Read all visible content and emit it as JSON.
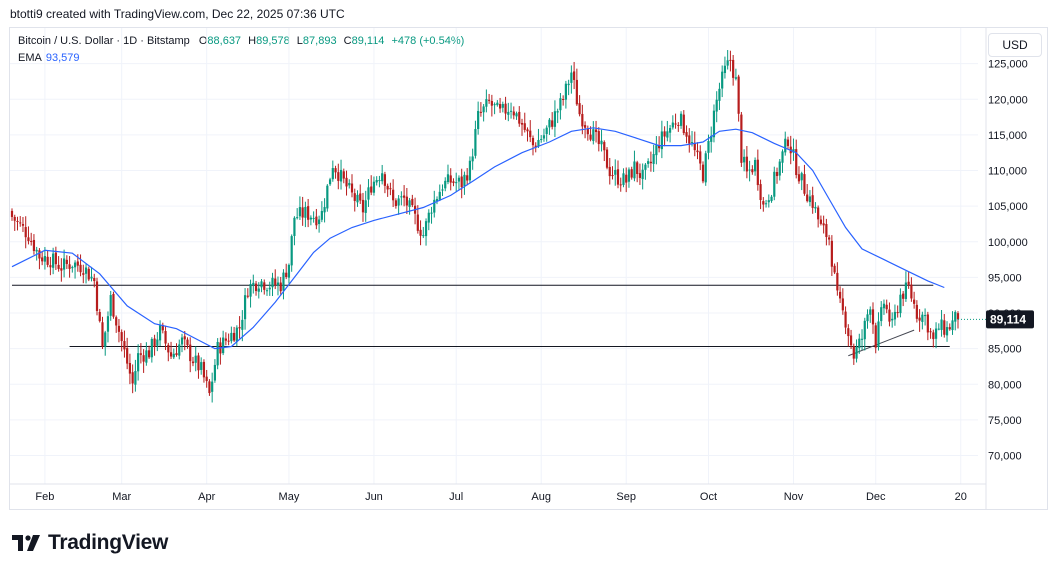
{
  "header": {
    "credit": "btotti9 created with TradingView.com, Dec 22, 2025 07:36 UTC"
  },
  "legend": {
    "symbol": "Bitcoin / U.S. Dollar · 1D · Bitstamp",
    "open_label": "O",
    "open": "88,637",
    "high_label": "H",
    "high": "89,578",
    "low_label": "L",
    "low": "87,893",
    "close_label": "C",
    "close": "89,114",
    "change": "+478 (+0.54%)",
    "ema_label": "EMA",
    "ema_value": "93,579"
  },
  "toolbar": {
    "currency": "USD"
  },
  "footer": {
    "logo_text": "TradingView"
  },
  "colors": {
    "up": "#089981",
    "down": "#b71c1c",
    "ema": "#2962ff",
    "grid": "#f0f3fa",
    "text": "#131722",
    "line": "#131722"
  },
  "chart_data": {
    "type": "candlestick",
    "symbol": "BTCUSD",
    "timeframe": "1D",
    "ylim": [
      66000,
      130000
    ],
    "y_ticks": [
      70000,
      75000,
      80000,
      85000,
      90000,
      95000,
      100000,
      105000,
      110000,
      115000,
      120000,
      125000
    ],
    "y_tick_labels": [
      "70,000",
      "75,000",
      "80,000",
      "85,000",
      "90,000",
      "95,000",
      "100,000",
      "105,000",
      "110,000",
      "115,000",
      "120,000",
      "125,000"
    ],
    "x_labels": [
      "Feb",
      "Mar",
      "Apr",
      "May",
      "Jun",
      "Jul",
      "Aug",
      "Sep",
      "Oct",
      "Nov",
      "Dec",
      "20"
    ],
    "x_label_days": [
      12,
      40,
      71,
      101,
      132,
      162,
      193,
      224,
      254,
      285,
      315,
      346
    ],
    "last_price": 89114,
    "last_price_label": "89,114",
    "horizontal_lines": [
      {
        "price": 93900,
        "from_day": 0,
        "to_day": 336
      },
      {
        "price": 85300,
        "from_day": 21,
        "to_day": 342
      }
    ],
    "trend_line": {
      "from_day": 305,
      "from_price": 84000,
      "to_day": 329,
      "to_price": 87600
    },
    "days": 345,
    "anchors": [
      [
        0,
        103500
      ],
      [
        6,
        101000
      ],
      [
        10,
        98000
      ],
      [
        14,
        97500
      ],
      [
        18,
        96500
      ],
      [
        22,
        97000
      ],
      [
        26,
        96500
      ],
      [
        30,
        94500
      ],
      [
        33,
        85000
      ],
      [
        36,
        92000
      ],
      [
        40,
        86000
      ],
      [
        44,
        80000
      ],
      [
        46,
        84000
      ],
      [
        50,
        84500
      ],
      [
        54,
        87500
      ],
      [
        58,
        84000
      ],
      [
        62,
        86000
      ],
      [
        66,
        83500
      ],
      [
        69,
        82000
      ],
      [
        72,
        78500
      ],
      [
        75,
        85000
      ],
      [
        80,
        87000
      ],
      [
        83,
        88000
      ],
      [
        86,
        93500
      ],
      [
        90,
        94500
      ],
      [
        94,
        94000
      ],
      [
        98,
        94000
      ],
      [
        101,
        97000
      ],
      [
        103,
        103500
      ],
      [
        107,
        104000
      ],
      [
        111,
        103500
      ],
      [
        113,
        104000
      ],
      [
        117,
        111000
      ],
      [
        120,
        109000
      ],
      [
        124,
        106500
      ],
      [
        128,
        104500
      ],
      [
        131,
        108000
      ],
      [
        135,
        110000
      ],
      [
        139,
        105500
      ],
      [
        143,
        106000
      ],
      [
        146,
        104000
      ],
      [
        150,
        101000
      ],
      [
        153,
        105000
      ],
      [
        157,
        108000
      ],
      [
        160,
        108500
      ],
      [
        164,
        108200
      ],
      [
        167,
        110500
      ],
      [
        170,
        117500
      ],
      [
        174,
        119500
      ],
      [
        178,
        118000
      ],
      [
        182,
        119000
      ],
      [
        186,
        116500
      ],
      [
        190,
        113500
      ],
      [
        194,
        115000
      ],
      [
        197,
        117000
      ],
      [
        201,
        120000
      ],
      [
        204,
        123800
      ],
      [
        207,
        118000
      ],
      [
        211,
        115500
      ],
      [
        215,
        113000
      ],
      [
        218,
        110000
      ],
      [
        221,
        109000
      ],
      [
        224,
        108500
      ],
      [
        227,
        110500
      ],
      [
        230,
        109000
      ],
      [
        233,
        111000
      ],
      [
        236,
        114000
      ],
      [
        240,
        116000
      ],
      [
        243,
        117500
      ],
      [
        246,
        115500
      ],
      [
        249,
        112500
      ],
      [
        252,
        109500
      ],
      [
        254,
        113500
      ],
      [
        256,
        118000
      ],
      [
        258,
        121500
      ],
      [
        260,
        124000
      ],
      [
        262,
        125500
      ],
      [
        264,
        122500
      ],
      [
        266,
        112000
      ],
      [
        268,
        109500
      ],
      [
        271,
        111000
      ],
      [
        274,
        105000
      ],
      [
        277,
        107500
      ],
      [
        280,
        111000
      ],
      [
        283,
        114500
      ],
      [
        286,
        110500
      ],
      [
        289,
        107500
      ],
      [
        292,
        105500
      ],
      [
        295,
        102000
      ],
      [
        298,
        100500
      ],
      [
        301,
        92000
      ],
      [
        304,
        89000
      ],
      [
        307,
        84000
      ],
      [
        310,
        86500
      ],
      [
        313,
        91500
      ],
      [
        315,
        86000
      ],
      [
        318,
        91500
      ],
      [
        321,
        88000
      ],
      [
        324,
        92500
      ],
      [
        327,
        93500
      ],
      [
        330,
        90000
      ],
      [
        333,
        89500
      ],
      [
        336,
        86000
      ],
      [
        338,
        88000
      ],
      [
        341,
        87700
      ],
      [
        344,
        89114
      ]
    ],
    "ema": {
      "label": "EMA",
      "value": 93579,
      "points": [
        [
          0,
          96500
        ],
        [
          12,
          98800
        ],
        [
          22,
          98400
        ],
        [
          32,
          95500
        ],
        [
          42,
          91000
        ],
        [
          52,
          88500
        ],
        [
          60,
          87800
        ],
        [
          68,
          86200
        ],
        [
          74,
          85000
        ],
        [
          80,
          85300
        ],
        [
          88,
          88000
        ],
        [
          96,
          91500
        ],
        [
          104,
          95500
        ],
        [
          110,
          98500
        ],
        [
          116,
          100500
        ],
        [
          124,
          102000
        ],
        [
          132,
          103000
        ],
        [
          140,
          103800
        ],
        [
          150,
          104800
        ],
        [
          160,
          106500
        ],
        [
          168,
          108500
        ],
        [
          176,
          110500
        ],
        [
          186,
          112500
        ],
        [
          196,
          114000
        ],
        [
          204,
          115500
        ],
        [
          212,
          116000
        ],
        [
          220,
          115500
        ],
        [
          228,
          114500
        ],
        [
          236,
          113500
        ],
        [
          244,
          113500
        ],
        [
          252,
          114000
        ],
        [
          258,
          115500
        ],
        [
          264,
          115800
        ],
        [
          270,
          115300
        ],
        [
          278,
          113800
        ],
        [
          286,
          112500
        ],
        [
          292,
          110000
        ],
        [
          298,
          106000
        ],
        [
          304,
          102000
        ],
        [
          310,
          99000
        ],
        [
          318,
          97500
        ],
        [
          326,
          96000
        ],
        [
          334,
          94500
        ],
        [
          340,
          93579
        ]
      ]
    }
  }
}
